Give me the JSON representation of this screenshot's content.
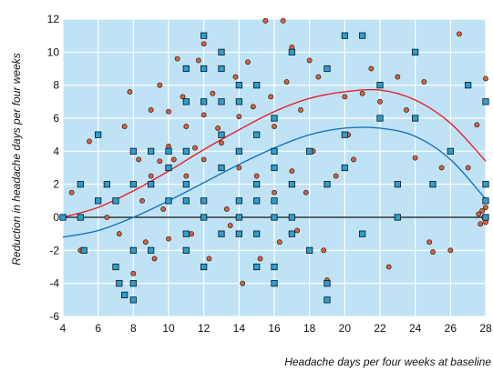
{
  "chart_data": {
    "type": "scatter",
    "xlabel": "Headache days per four weeks at baseline",
    "ylabel": "Reduction in headache days per four weeks",
    "xlim": [
      4,
      28
    ],
    "ylim": [
      -6,
      12
    ],
    "xticks": [
      4,
      6,
      8,
      10,
      12,
      14,
      16,
      18,
      20,
      22,
      24,
      26,
      28
    ],
    "yticks": [
      -6,
      -4,
      -2,
      0,
      2,
      4,
      6,
      8,
      10,
      12
    ],
    "grid": true,
    "legend": "none",
    "colors": {
      "background": "#bfe3f5",
      "grid": "#ffffff",
      "circle_fill": "#d9603b",
      "square_fill": "#2b9fd3",
      "marker_edge": "#111111",
      "curve_red": "#e8202a",
      "curve_blue": "#1a73c2",
      "zero_line": "#111111"
    },
    "series": [
      {
        "marker": "circle",
        "points": [
          [
            4.5,
            1.5
          ],
          [
            5,
            -2
          ],
          [
            5.5,
            4.6
          ],
          [
            6,
            1
          ],
          [
            6.5,
            0
          ],
          [
            7,
            1
          ],
          [
            7.2,
            -1
          ],
          [
            7.5,
            5.5
          ],
          [
            7.8,
            7.6
          ],
          [
            8,
            2
          ],
          [
            8,
            -3.4
          ],
          [
            8.3,
            3.5
          ],
          [
            8.5,
            1
          ],
          [
            8.7,
            -1.5
          ],
          [
            9,
            6.5
          ],
          [
            9,
            2.5
          ],
          [
            9.2,
            -2.5
          ],
          [
            9.5,
            8
          ],
          [
            9.5,
            3.4
          ],
          [
            9.7,
            0.5
          ],
          [
            10,
            6.4
          ],
          [
            10,
            4.3
          ],
          [
            10,
            -1.3
          ],
          [
            10.3,
            3.5
          ],
          [
            10.5,
            9.6
          ],
          [
            10.8,
            7.3
          ],
          [
            11,
            5.5
          ],
          [
            11,
            2.5
          ],
          [
            11.3,
            -1
          ],
          [
            11.5,
            4.2
          ],
          [
            11.7,
            9.5
          ],
          [
            12,
            10.5
          ],
          [
            12,
            6.2
          ],
          [
            12,
            3.5
          ],
          [
            12.3,
            -2.5
          ],
          [
            12.5,
            7.5
          ],
          [
            12.8,
            5.4
          ],
          [
            13,
            9
          ],
          [
            13,
            4.5
          ],
          [
            13.3,
            0.5
          ],
          [
            13.5,
            -0.5
          ],
          [
            13.8,
            8.5
          ],
          [
            14,
            6.1
          ],
          [
            14,
            3
          ],
          [
            14.2,
            -4
          ],
          [
            14.5,
            9.4
          ],
          [
            14.8,
            6.7
          ],
          [
            15,
            2.5
          ],
          [
            15.2,
            -2.5
          ],
          [
            15.5,
            11.9
          ],
          [
            15.8,
            7.3
          ],
          [
            16,
            5.5
          ],
          [
            16,
            1.5
          ],
          [
            16.3,
            -1.5
          ],
          [
            16.5,
            11.9
          ],
          [
            16.7,
            8.2
          ],
          [
            17,
            10.3
          ],
          [
            17,
            2.8
          ],
          [
            17.3,
            -0.8
          ],
          [
            17.5,
            6.5
          ],
          [
            17.8,
            1.5
          ],
          [
            18,
            9.5
          ],
          [
            18.2,
            4
          ],
          [
            18.5,
            8.5
          ],
          [
            18.8,
            -2
          ],
          [
            19,
            -3.8
          ],
          [
            19.5,
            2.5
          ],
          [
            20,
            7.3
          ],
          [
            20.2,
            5
          ],
          [
            20.5,
            3.5
          ],
          [
            21,
            7.5
          ],
          [
            21.5,
            9
          ],
          [
            22,
            7
          ],
          [
            22.5,
            -3
          ],
          [
            23,
            8.5
          ],
          [
            23.5,
            6.5
          ],
          [
            24,
            3.6
          ],
          [
            24.5,
            8.2
          ],
          [
            24.8,
            -1.5
          ],
          [
            25,
            -2.1
          ],
          [
            25.5,
            3
          ],
          [
            26,
            -2
          ],
          [
            26.5,
            11.1
          ],
          [
            27,
            3
          ],
          [
            27.5,
            5.6
          ],
          [
            27.8,
            0.4
          ],
          [
            27.9,
            0
          ],
          [
            28,
            0.6
          ],
          [
            28,
            -0.3
          ],
          [
            27.6,
            0.2
          ],
          [
            27.7,
            -0.4
          ],
          [
            28,
            8.4
          ]
        ]
      },
      {
        "marker": "square",
        "points": [
          [
            4,
            0
          ],
          [
            5,
            2
          ],
          [
            5,
            0
          ],
          [
            5.2,
            -2
          ],
          [
            6,
            5
          ],
          [
            6,
            1
          ],
          [
            6.5,
            2
          ],
          [
            7,
            1
          ],
          [
            7,
            -3
          ],
          [
            7.2,
            -4
          ],
          [
            7.5,
            -4.7
          ],
          [
            8,
            4
          ],
          [
            8,
            2
          ],
          [
            8,
            -2
          ],
          [
            8,
            -5
          ],
          [
            8,
            -4
          ],
          [
            9,
            4
          ],
          [
            9,
            2
          ],
          [
            9,
            -2
          ],
          [
            10,
            4
          ],
          [
            10,
            3
          ],
          [
            10,
            1
          ],
          [
            11,
            9
          ],
          [
            11,
            7
          ],
          [
            11,
            4
          ],
          [
            11,
            2
          ],
          [
            11,
            1
          ],
          [
            11,
            -1
          ],
          [
            11,
            -2
          ],
          [
            12,
            11
          ],
          [
            12,
            9
          ],
          [
            12,
            7
          ],
          [
            12,
            1
          ],
          [
            12,
            0
          ],
          [
            12,
            -3
          ],
          [
            13,
            10
          ],
          [
            13,
            9
          ],
          [
            13,
            7
          ],
          [
            13,
            5
          ],
          [
            13,
            3
          ],
          [
            13,
            -1
          ],
          [
            14,
            8
          ],
          [
            14,
            7
          ],
          [
            14,
            4
          ],
          [
            14,
            1
          ],
          [
            14,
            0
          ],
          [
            14,
            -1
          ],
          [
            15,
            8
          ],
          [
            15,
            5
          ],
          [
            15,
            2
          ],
          [
            15,
            1
          ],
          [
            15,
            -1
          ],
          [
            15,
            -3
          ],
          [
            16,
            6
          ],
          [
            16,
            4
          ],
          [
            16,
            3
          ],
          [
            16,
            1
          ],
          [
            16,
            0
          ],
          [
            16,
            -3
          ],
          [
            16,
            -4
          ],
          [
            17,
            10
          ],
          [
            17,
            2
          ],
          [
            17,
            0
          ],
          [
            17,
            -1
          ],
          [
            18,
            4
          ],
          [
            18,
            -2
          ],
          [
            19,
            9
          ],
          [
            19,
            2
          ],
          [
            19,
            -4
          ],
          [
            19,
            -5
          ],
          [
            20,
            11
          ],
          [
            20,
            5
          ],
          [
            20,
            3
          ],
          [
            21,
            11
          ],
          [
            21,
            -1
          ],
          [
            22,
            6
          ],
          [
            22,
            8
          ],
          [
            23,
            2
          ],
          [
            23,
            0
          ],
          [
            24,
            10
          ],
          [
            24,
            6
          ],
          [
            25,
            2
          ],
          [
            26,
            4
          ],
          [
            27,
            8
          ],
          [
            28,
            7
          ],
          [
            28,
            2
          ],
          [
            28,
            1
          ],
          [
            28,
            0
          ]
        ]
      }
    ],
    "curves": [
      {
        "color": "red",
        "points": [
          [
            4,
            0
          ],
          [
            6,
            0.6
          ],
          [
            8,
            1.6
          ],
          [
            10,
            2.8
          ],
          [
            12,
            4.1
          ],
          [
            14,
            5.3
          ],
          [
            16,
            6.4
          ],
          [
            18,
            7.2
          ],
          [
            20,
            7.6
          ],
          [
            22,
            7.7
          ],
          [
            24,
            7.1
          ],
          [
            26,
            5.7
          ],
          [
            28,
            3.4
          ]
        ]
      },
      {
        "color": "blue",
        "points": [
          [
            4,
            -1.2
          ],
          [
            6,
            -0.8
          ],
          [
            8,
            0
          ],
          [
            10,
            1
          ],
          [
            12,
            2.1
          ],
          [
            14,
            3.2
          ],
          [
            16,
            4.2
          ],
          [
            18,
            5
          ],
          [
            20,
            5.4
          ],
          [
            22,
            5.4
          ],
          [
            24,
            4.9
          ],
          [
            26,
            3.5
          ],
          [
            28,
            1.1
          ]
        ]
      }
    ]
  }
}
